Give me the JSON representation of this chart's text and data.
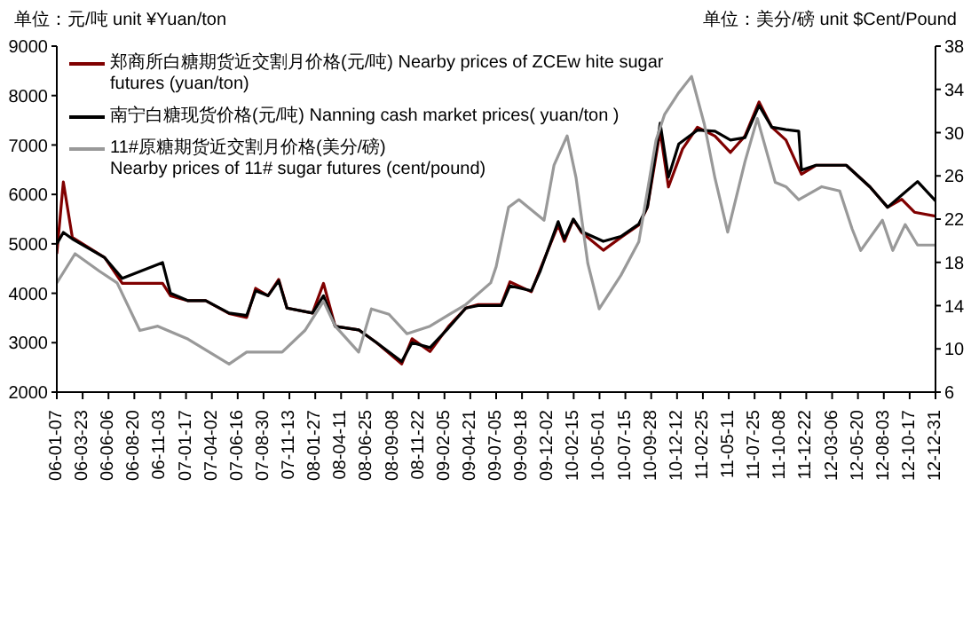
{
  "chart_data": {
    "type": "line",
    "ylabel": "单位：元/吨   unit ¥Yuan/ton",
    "y2label": "单位：美分/磅   unit $Cent/Pound",
    "legend": "top left",
    "grid": false,
    "xlim": [
      "2006-01-07",
      "2012-12-31"
    ],
    "xticks": [
      {
        "value": "2006-01-07",
        "label": "06-01-07"
      },
      {
        "value": "2006-03-23",
        "label": "06-03-23"
      },
      {
        "value": "2006-06-06",
        "label": "06-06-06"
      },
      {
        "value": "2006-08-20",
        "label": "06-08-20"
      },
      {
        "value": "2006-11-03",
        "label": "06-11-03"
      },
      {
        "value": "2007-01-17",
        "label": "07-01-17"
      },
      {
        "value": "2007-04-02",
        "label": "07-04-02"
      },
      {
        "value": "2007-06-16",
        "label": "07-06-16"
      },
      {
        "value": "2007-08-30",
        "label": "07-08-30"
      },
      {
        "value": "2007-11-13",
        "label": "07-11-13"
      },
      {
        "value": "2008-01-27",
        "label": "08-01-27"
      },
      {
        "value": "2008-04-11",
        "label": "08-04-11"
      },
      {
        "value": "2008-06-25",
        "label": "08-06-25"
      },
      {
        "value": "2008-09-08",
        "label": "08-09-08"
      },
      {
        "value": "2008-11-22",
        "label": "08-11-22"
      },
      {
        "value": "2009-02-05",
        "label": "09-02-05"
      },
      {
        "value": "2009-04-21",
        "label": "09-04-21"
      },
      {
        "value": "2009-07-05",
        "label": "09-07-05"
      },
      {
        "value": "2009-09-18",
        "label": "09-09-18"
      },
      {
        "value": "2009-12-02",
        "label": "09-12-02"
      },
      {
        "value": "2010-02-15",
        "label": "10-02-15"
      },
      {
        "value": "2010-05-01",
        "label": "10-05-01"
      },
      {
        "value": "2010-07-15",
        "label": "10-07-15"
      },
      {
        "value": "2010-09-28",
        "label": "10-09-28"
      },
      {
        "value": "2010-12-12",
        "label": "10-12-12"
      },
      {
        "value": "2011-02-25",
        "label": "11-02-25"
      },
      {
        "value": "2011-05-11",
        "label": "11-05-11"
      },
      {
        "value": "2011-07-25",
        "label": "11-07-25"
      },
      {
        "value": "2011-10-08",
        "label": "11-10-08"
      },
      {
        "value": "2011-12-22",
        "label": "11-12-22"
      },
      {
        "value": "2012-03-06",
        "label": "12-03-06"
      },
      {
        "value": "2012-05-20",
        "label": "12-05-20"
      },
      {
        "value": "2012-08-03",
        "label": "12-08-03"
      },
      {
        "value": "2012-10-17",
        "label": "12-10-17"
      },
      {
        "value": "2012-12-31",
        "label": "12-12-31"
      }
    ],
    "ylim": [
      2000,
      9000
    ],
    "yticks": [
      2000,
      3000,
      4000,
      5000,
      6000,
      7000,
      8000,
      9000
    ],
    "y2lim": [
      6,
      38
    ],
    "y2ticks": [
      6,
      10,
      14,
      18,
      22,
      26,
      30,
      34,
      38
    ],
    "series": [
      {
        "name": "郑商所白糖期货近交割月价格(元/吨) Nearby prices of ZCEw hite sugar futures (yuan/ton)",
        "color": "#800000",
        "x": [
          "2006-01-07",
          "2006-01-26",
          "2006-02-21",
          "2006-05-26",
          "2006-07-16",
          "2006-11-10",
          "2006-12-03",
          "2007-01-23",
          "2007-03-15",
          "2007-05-22",
          "2007-07-12",
          "2007-08-07",
          "2007-09-12",
          "2007-10-13",
          "2007-11-06",
          "2008-01-19",
          "2008-02-20",
          "2008-03-25",
          "2008-06-01",
          "2008-07-23",
          "2008-10-04",
          "2008-11-03",
          "2008-12-25",
          "2009-02-17",
          "2009-04-08",
          "2009-05-14",
          "2009-07-20",
          "2009-08-14",
          "2009-10-15",
          "2009-11-10",
          "2010-01-01",
          "2010-01-19",
          "2010-02-14",
          "2010-03-10",
          "2010-05-12",
          "2010-07-02",
          "2010-08-23",
          "2010-09-17",
          "2010-10-24",
          "2010-11-17",
          "2010-12-28",
          "2011-02-09",
          "2011-04-01",
          "2011-05-16",
          "2011-06-27",
          "2011-08-07",
          "2011-09-13",
          "2011-10-24",
          "2011-12-08",
          "2012-01-19",
          "2012-04-16",
          "2012-06-24",
          "2012-08-14",
          "2012-09-24",
          "2012-10-31",
          "2012-12-31"
        ],
        "values": [
          4800,
          6250,
          5130,
          4720,
          4200,
          4200,
          3950,
          3850,
          3850,
          3590,
          3510,
          4100,
          3950,
          4280,
          3700,
          3600,
          4200,
          3330,
          3260,
          3000,
          2570,
          3080,
          2820,
          3330,
          3700,
          3770,
          3770,
          4230,
          4030,
          4490,
          5380,
          5050,
          5490,
          5230,
          4870,
          5130,
          5380,
          5740,
          7280,
          6150,
          6920,
          7360,
          7180,
          6850,
          7180,
          7870,
          7360,
          7100,
          6410,
          6590,
          6590,
          6150,
          5740,
          5900,
          5640,
          5560
        ]
      },
      {
        "name": "南宁白糖现货价格(元/吨) Nanning cash market prices( yuan/ton )",
        "color": "#000000",
        "x": [
          "2006-01-07",
          "2006-01-26",
          "2006-02-21",
          "2006-05-26",
          "2006-07-16",
          "2006-11-10",
          "2006-12-03",
          "2007-01-23",
          "2007-03-15",
          "2007-05-22",
          "2007-07-12",
          "2007-08-07",
          "2007-09-12",
          "2007-10-13",
          "2007-11-06",
          "2008-01-19",
          "2008-02-20",
          "2008-03-25",
          "2008-06-01",
          "2008-07-23",
          "2008-10-04",
          "2008-11-03",
          "2008-12-25",
          "2009-02-17",
          "2009-04-08",
          "2009-05-14",
          "2009-07-20",
          "2009-08-14",
          "2009-10-15",
          "2009-11-10",
          "2010-01-01",
          "2010-01-19",
          "2010-02-14",
          "2010-03-10",
          "2010-05-12",
          "2010-07-02",
          "2010-08-23",
          "2010-09-17",
          "2010-10-24",
          "2010-11-17",
          "2010-12-17",
          "2011-02-09",
          "2011-04-01",
          "2011-05-16",
          "2011-06-27",
          "2011-08-07",
          "2011-09-13",
          "2011-10-24",
          "2011-11-30",
          "2011-12-08",
          "2012-01-19",
          "2012-04-16",
          "2012-06-24",
          "2012-08-14",
          "2012-11-09",
          "2012-12-31"
        ],
        "values": [
          5000,
          5230,
          5100,
          4720,
          4300,
          4620,
          4000,
          3850,
          3850,
          3600,
          3550,
          4050,
          3950,
          4250,
          3700,
          3600,
          3950,
          3330,
          3260,
          3000,
          2620,
          3000,
          2900,
          3300,
          3700,
          3750,
          3750,
          4150,
          4050,
          4450,
          5450,
          5100,
          5500,
          5250,
          5050,
          5150,
          5400,
          5750,
          7440,
          6350,
          7020,
          7300,
          7280,
          7100,
          7150,
          7800,
          7360,
          7310,
          7280,
          6490,
          6590,
          6590,
          6150,
          5740,
          6260,
          5870
        ]
      },
      {
        "name": "11#原糖期货近交割月价格(美分/磅)\nNearby prices of 11# sugar futures (cent/pound)",
        "color": "#999999",
        "axis": "y2",
        "x": [
          "2006-01-07",
          "2006-03-01",
          "2006-05-10",
          "2006-07-01",
          "2006-09-05",
          "2006-10-27",
          "2007-01-23",
          "2007-05-22",
          "2007-07-12",
          "2007-10-23",
          "2007-12-28",
          "2008-02-20",
          "2008-03-25",
          "2008-06-01",
          "2008-07-08",
          "2008-08-28",
          "2008-10-19",
          "2008-12-25",
          "2009-04-08",
          "2009-06-19",
          "2009-07-05",
          "2009-08-10",
          "2009-09-09",
          "2009-11-21",
          "2009-12-20",
          "2010-01-27",
          "2010-02-22",
          "2010-03-28",
          "2010-04-30",
          "2010-07-02",
          "2010-08-23",
          "2010-10-12",
          "2010-11-06",
          "2010-12-17",
          "2011-01-23",
          "2011-03-01",
          "2011-04-01",
          "2011-05-08",
          "2011-06-27",
          "2011-08-02",
          "2011-09-23",
          "2011-10-24",
          "2011-11-30",
          "2012-02-05",
          "2012-03-28",
          "2012-05-03",
          "2012-05-28",
          "2012-07-30",
          "2012-08-29",
          "2012-10-04",
          "2012-11-09",
          "2012-12-31"
        ],
        "values": [
          16.1,
          18.8,
          17.2,
          16.1,
          11.7,
          12.1,
          10.9,
          8.6,
          9.7,
          9.7,
          11.7,
          14.4,
          12.1,
          9.7,
          13.7,
          13.2,
          11.4,
          12.1,
          14.1,
          16.1,
          17.6,
          23.1,
          23.8,
          21.9,
          27.0,
          29.7,
          25.8,
          17.9,
          13.7,
          16.8,
          19.9,
          29.3,
          31.7,
          33.7,
          35.2,
          30.8,
          25.8,
          20.8,
          27.3,
          31.3,
          25.4,
          25.0,
          23.8,
          25.0,
          24.6,
          21.1,
          19.1,
          21.9,
          19.1,
          21.5,
          19.6,
          19.6
        ]
      }
    ]
  }
}
